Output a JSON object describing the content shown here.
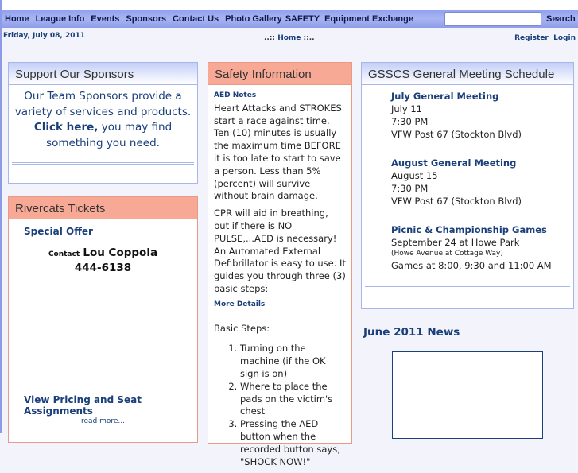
{
  "nav": {
    "items": [
      "Home",
      "League Info",
      "Events",
      "Sponsors",
      "Contact Us",
      "Photo Gallery",
      "SAFETY",
      "Equipment Exchange"
    ],
    "search_label": "Search",
    "search_value": ""
  },
  "subbar": {
    "date": "Friday, July 08, 2011",
    "crumb_prefix": "..::",
    "crumb": "Home",
    "crumb_suffix": "::..",
    "register": "Register",
    "login": "Login"
  },
  "sponsors": {
    "title": "Support Our Sponsors",
    "text1": "Our Team Sponsors provide a variety of services and products.",
    "link": "Click here,",
    "text2": "you may find something you need."
  },
  "rivercats": {
    "title": "Rivercats Tickets",
    "offer": "Special Offer",
    "contact_label": "Contact",
    "contact_name": "Lou Coppola",
    "phone": "444-6138",
    "pricing": "View Pricing and Seat Assignments",
    "read_more": "read more..."
  },
  "safety": {
    "title": "Safety Information",
    "subtitle": "AED Notes",
    "p1": "Heart Attacks and STROKES start a race against time. Ten (10) minutes is usually the maximum time BEFORE it is too late to start to save a person. Less than 5% (percent) will survive without brain damage.",
    "p2": "CPR will aid in breathing, but if there is NO PULSE,...AED is necessary! An Automated External Defibrillator is easy to use. It guides you through three (3) basic steps:",
    "more": "More Details",
    "steps_label": "Basic Steps:",
    "steps": [
      "Turning on the machine (if the OK sign is on)",
      "Where to place the pads on the victim's chest",
      "Pressing the AED button when the recorded button says, \"SHOCK NOW!\""
    ]
  },
  "meetings": {
    "title": "GSSCS General Meeting Schedule",
    "items": [
      {
        "name": "July General Meeting",
        "date": "July 11",
        "time": "7:30 PM",
        "place": "VFW Post 67 (Stockton Blvd)"
      },
      {
        "name": "August General Meeting",
        "date": "August 15",
        "time": "7:30 PM",
        "place": "VFW Post 67 (Stockton Blvd)"
      }
    ],
    "games": {
      "name": "Picnic & Championship Games",
      "date": "September 24 at Howe Park",
      "note": "(Howe Avenue at Cottage Way)",
      "times": "Games at 8:00, 9:30 and 11:00 AM"
    }
  },
  "news": {
    "title": "June 2011 News"
  }
}
